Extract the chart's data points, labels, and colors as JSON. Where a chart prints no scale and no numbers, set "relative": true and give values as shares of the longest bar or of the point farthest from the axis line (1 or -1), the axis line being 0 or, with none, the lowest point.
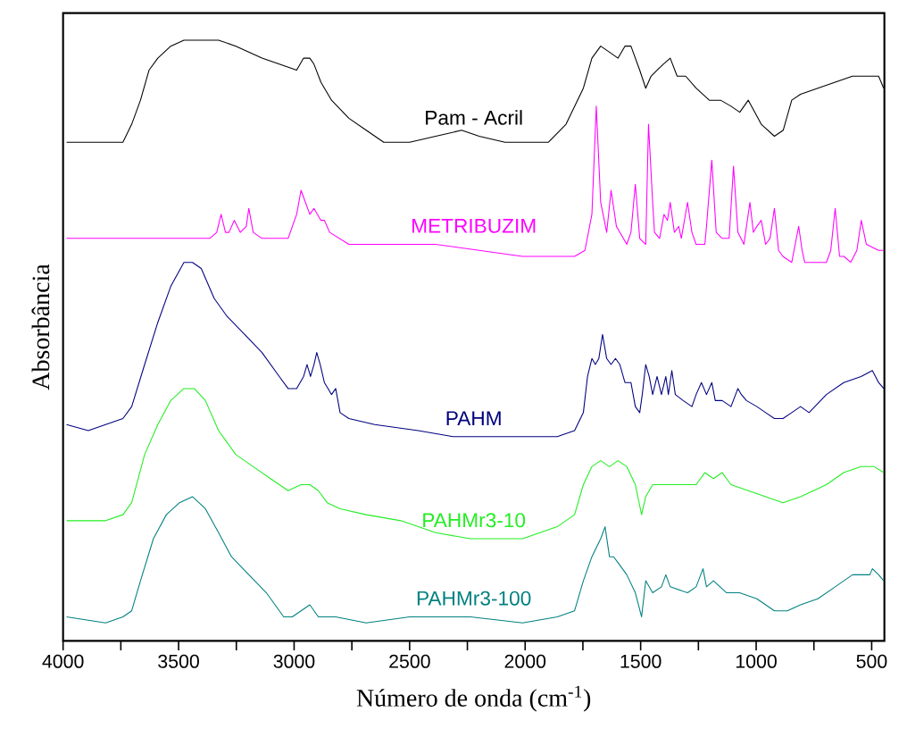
{
  "chart_data": {
    "type": "line",
    "relative": true,
    "xlabel": "Número de onda (cm$^{-1}$)",
    "ylabel": "Absorbância",
    "tick_labels": "x",
    "line_style": "solid",
    "xlim": [
      4000,
      445
    ],
    "xticks": [
      4000,
      {
        "value": 3750,
        "label": null
      },
      3500,
      {
        "value": 3250,
        "label": null
      },
      3000,
      {
        "value": 2750,
        "label": null
      },
      2500,
      {
        "value": 2250,
        "label": null
      },
      2000,
      {
        "value": 1750,
        "label": null
      },
      1500,
      {
        "value": 1250,
        "label": null
      },
      1000,
      {
        "value": 750,
        "label": null
      },
      500
    ],
    "series": [
      {
        "name": "Pam - Acril",
        "color": "#000000",
        "x": [
          3985,
          3891,
          3816,
          3741,
          3703,
          3665,
          3628,
          3590,
          3534,
          3477,
          3402,
          3327,
          3252,
          3139,
          3064,
          2989,
          2959,
          2932,
          2914,
          2884,
          2838,
          2763,
          2688,
          2612,
          2500,
          2387,
          2275,
          2199,
          2087,
          1974,
          1899,
          1823,
          1748,
          1711,
          1673,
          1635,
          1598,
          1568,
          1542,
          1504,
          1478,
          1455,
          1429,
          1402,
          1372,
          1342,
          1305,
          1260,
          1203,
          1154,
          1109,
          1071,
          1034,
          978,
          921,
          883,
          846,
          808,
          733,
          658,
          583,
          508,
          470,
          448
        ],
        "values": [
          0.83,
          0.83,
          0.83,
          0.83,
          0.86,
          0.9,
          0.95,
          0.97,
          0.99,
          1.0,
          1.0,
          1.0,
          0.99,
          0.97,
          0.96,
          0.95,
          0.97,
          0.97,
          0.96,
          0.93,
          0.9,
          0.87,
          0.85,
          0.83,
          0.83,
          0.84,
          0.85,
          0.84,
          0.83,
          0.83,
          0.83,
          0.86,
          0.92,
          0.97,
          0.99,
          0.98,
          0.97,
          0.99,
          0.99,
          0.95,
          0.92,
          0.94,
          0.95,
          0.96,
          0.97,
          0.94,
          0.94,
          0.92,
          0.9,
          0.9,
          0.89,
          0.88,
          0.9,
          0.86,
          0.84,
          0.85,
          0.9,
          0.91,
          0.92,
          0.93,
          0.94,
          0.94,
          0.94,
          0.92
        ]
      },
      {
        "name": "METRIBUZIM",
        "color": "#ff00ff",
        "x": [
          3985,
          3515,
          3365,
          3335,
          3316,
          3297,
          3282,
          3259,
          3233,
          3207,
          3196,
          3177,
          3139,
          3026,
          2989,
          2970,
          2951,
          2932,
          2914,
          2884,
          2869,
          2846,
          2763,
          2387,
          2011,
          1955,
          1936,
          1786,
          1741,
          1711,
          1692,
          1673,
          1647,
          1628,
          1605,
          1560,
          1542,
          1523,
          1504,
          1478,
          1466,
          1448,
          1440,
          1418,
          1399,
          1384,
          1372,
          1354,
          1335,
          1324,
          1297,
          1278,
          1260,
          1222,
          1215,
          1192,
          1173,
          1147,
          1117,
          1098,
          1079,
          1053,
          1027,
          1012,
          997,
          978,
          959,
          940,
          921,
          903,
          884,
          846,
          816,
          801,
          790,
          696,
          677,
          658,
          639,
          620,
          591,
          564,
          545,
          523,
          470,
          448
        ],
        "values": [
          0.67,
          0.67,
          0.67,
          0.68,
          0.71,
          0.68,
          0.68,
          0.7,
          0.68,
          0.69,
          0.72,
          0.68,
          0.67,
          0.67,
          0.71,
          0.75,
          0.73,
          0.71,
          0.72,
          0.7,
          0.7,
          0.68,
          0.66,
          0.66,
          0.64,
          0.64,
          0.64,
          0.64,
          0.65,
          0.71,
          0.89,
          0.73,
          0.68,
          0.75,
          0.69,
          0.66,
          0.68,
          0.76,
          0.67,
          0.66,
          0.86,
          0.73,
          0.68,
          0.67,
          0.71,
          0.7,
          0.73,
          0.68,
          0.69,
          0.67,
          0.73,
          0.68,
          0.66,
          0.66,
          0.69,
          0.8,
          0.68,
          0.67,
          0.67,
          0.79,
          0.68,
          0.66,
          0.73,
          0.68,
          0.69,
          0.7,
          0.66,
          0.67,
          0.72,
          0.65,
          0.64,
          0.63,
          0.69,
          0.65,
          0.63,
          0.63,
          0.65,
          0.72,
          0.64,
          0.64,
          0.63,
          0.65,
          0.7,
          0.66,
          0.65,
          0.65
        ]
      },
      {
        "name": "PAHM",
        "color": "#000080",
        "x": [
          3985,
          3891,
          3816,
          3741,
          3703,
          3647,
          3590,
          3534,
          3477,
          3440,
          3402,
          3346,
          3290,
          3214,
          3139,
          3064,
          3026,
          2989,
          2959,
          2944,
          2929,
          2914,
          2902,
          2887,
          2869,
          2853,
          2838,
          2820,
          2801,
          2763,
          2651,
          2463,
          2312,
          2162,
          2011,
          1861,
          1786,
          1748,
          1730,
          1711,
          1696,
          1681,
          1665,
          1647,
          1628,
          1609,
          1590,
          1568,
          1542,
          1523,
          1504,
          1493,
          1478,
          1463,
          1448,
          1429,
          1410,
          1391,
          1380,
          1365,
          1350,
          1316,
          1278,
          1260,
          1237,
          1215,
          1192,
          1177,
          1147,
          1109,
          1079,
          1064,
          1042,
          997,
          959,
          921,
          884,
          846,
          808,
          771,
          696,
          621,
          546,
          497,
          470,
          448
        ],
        "values": [
          0.36,
          0.35,
          0.36,
          0.37,
          0.39,
          0.46,
          0.53,
          0.59,
          0.63,
          0.63,
          0.62,
          0.57,
          0.54,
          0.51,
          0.48,
          0.44,
          0.42,
          0.42,
          0.44,
          0.46,
          0.44,
          0.46,
          0.48,
          0.46,
          0.43,
          0.42,
          0.41,
          0.42,
          0.38,
          0.37,
          0.36,
          0.35,
          0.34,
          0.34,
          0.34,
          0.34,
          0.35,
          0.38,
          0.44,
          0.47,
          0.46,
          0.47,
          0.51,
          0.47,
          0.46,
          0.47,
          0.46,
          0.43,
          0.43,
          0.39,
          0.38,
          0.41,
          0.46,
          0.44,
          0.41,
          0.44,
          0.41,
          0.44,
          0.41,
          0.45,
          0.41,
          0.4,
          0.39,
          0.41,
          0.43,
          0.41,
          0.43,
          0.4,
          0.4,
          0.39,
          0.42,
          0.41,
          0.4,
          0.39,
          0.38,
          0.37,
          0.37,
          0.38,
          0.39,
          0.38,
          0.41,
          0.43,
          0.44,
          0.45,
          0.43,
          0.42
        ]
      },
      {
        "name": "PAHMr3-10",
        "color": "#22ee22",
        "x": [
          3985,
          3891,
          3816,
          3741,
          3703,
          3647,
          3590,
          3534,
          3477,
          3432,
          3384,
          3327,
          3252,
          3177,
          3102,
          3026,
          2970,
          2932,
          2895,
          2857,
          2801,
          2688,
          2538,
          2387,
          2237,
          2124,
          2011,
          1861,
          1786,
          1748,
          1711,
          1673,
          1635,
          1598,
          1560,
          1523,
          1496,
          1478,
          1448,
          1410,
          1372,
          1335,
          1260,
          1222,
          1185,
          1147,
          1109,
          1034,
          959,
          884,
          808,
          696,
          621,
          546,
          489,
          448
        ],
        "values": [
          0.2,
          0.2,
          0.2,
          0.21,
          0.23,
          0.31,
          0.36,
          0.4,
          0.42,
          0.42,
          0.4,
          0.35,
          0.31,
          0.29,
          0.27,
          0.25,
          0.26,
          0.26,
          0.25,
          0.23,
          0.22,
          0.21,
          0.2,
          0.18,
          0.17,
          0.17,
          0.17,
          0.19,
          0.21,
          0.26,
          0.29,
          0.3,
          0.29,
          0.3,
          0.29,
          0.26,
          0.21,
          0.24,
          0.26,
          0.26,
          0.26,
          0.26,
          0.26,
          0.28,
          0.27,
          0.28,
          0.26,
          0.25,
          0.24,
          0.23,
          0.24,
          0.26,
          0.28,
          0.29,
          0.29,
          0.28
        ]
      },
      {
        "name": "PAHMr3-100",
        "color": "#008080",
        "x": [
          3985,
          3816,
          3741,
          3703,
          3665,
          3609,
          3553,
          3496,
          3440,
          3384,
          3327,
          3271,
          3196,
          3120,
          3045,
          3008,
          2970,
          2932,
          2895,
          2857,
          2820,
          2688,
          2500,
          2387,
          2237,
          2011,
          1861,
          1786,
          1748,
          1711,
          1673,
          1654,
          1635,
          1617,
          1598,
          1560,
          1523,
          1496,
          1478,
          1448,
          1410,
          1391,
          1372,
          1297,
          1260,
          1230,
          1215,
          1185,
          1128,
          1072,
          997,
          921,
          865,
          808,
          733,
          658,
          583,
          508,
          497,
          470,
          448
        ],
        "values": [
          0.04,
          0.03,
          0.04,
          0.05,
          0.1,
          0.17,
          0.21,
          0.23,
          0.24,
          0.22,
          0.18,
          0.14,
          0.11,
          0.08,
          0.04,
          0.04,
          0.05,
          0.06,
          0.04,
          0.04,
          0.04,
          0.03,
          0.04,
          0.04,
          0.04,
          0.03,
          0.04,
          0.05,
          0.1,
          0.14,
          0.17,
          0.19,
          0.14,
          0.14,
          0.13,
          0.11,
          0.08,
          0.04,
          0.1,
          0.08,
          0.09,
          0.11,
          0.09,
          0.08,
          0.09,
          0.12,
          0.09,
          0.1,
          0.08,
          0.08,
          0.07,
          0.05,
          0.05,
          0.06,
          0.07,
          0.09,
          0.11,
          0.11,
          0.12,
          0.11,
          0.1
        ]
      }
    ]
  }
}
